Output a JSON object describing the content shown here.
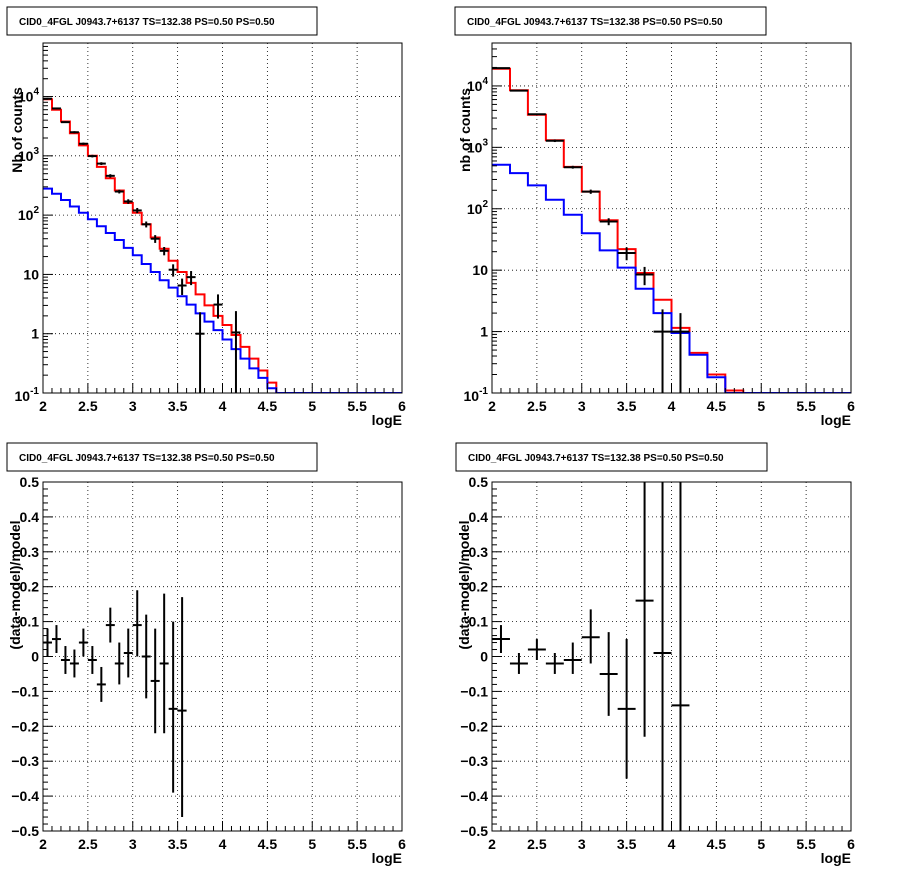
{
  "chart_data": [
    {
      "panel": "top-left",
      "type": "line",
      "title": "CID0_4FGL J0943.7+6137 TS=132.38 PS=0.50 PS=0.50",
      "xlabel": "logE",
      "ylabel": "Nb of counts",
      "xlim": [
        2,
        6
      ],
      "ylim": [
        0.1,
        80000
      ],
      "yscale": "log",
      "grid": true,
      "x_ticks": [
        "2",
        "2.5",
        "3",
        "3.5",
        "4",
        "4.5",
        "5",
        "5.5",
        "6"
      ],
      "y_ticks": [
        {
          "value": 0.1,
          "label": "10^-1"
        },
        {
          "value": 1,
          "label": "1"
        },
        {
          "value": 10,
          "label": "10"
        },
        {
          "value": 100,
          "label": "10^2"
        },
        {
          "value": 1000,
          "label": "10^3"
        },
        {
          "value": 10000,
          "label": "10^4"
        }
      ],
      "series": [
        {
          "color": "#ff0000",
          "kind": "step",
          "bin_edges": [
            2.0,
            2.1,
            2.2,
            2.3,
            2.4,
            2.5,
            2.6,
            2.7,
            2.8,
            2.9,
            3.0,
            3.1,
            3.2,
            3.3,
            3.4,
            3.5,
            3.6,
            3.7,
            3.8,
            3.9,
            4.0,
            4.1,
            4.2,
            4.3,
            4.4,
            4.5,
            4.6,
            4.7,
            4.8,
            4.9,
            5.0,
            5.1,
            5.2,
            5.3,
            5.4,
            5.5,
            5.6,
            5.7,
            5.8,
            5.9,
            6.0
          ],
          "values": [
            9000,
            6000,
            3800,
            2400,
            1500,
            1000,
            650,
            420,
            260,
            160,
            110,
            70,
            42,
            27,
            17,
            11,
            7.2,
            4.6,
            3.0,
            2.0,
            1.4,
            0.95,
            0.6,
            0.38,
            0.24,
            0.15,
            0.1,
            0.1,
            0.1,
            0.1,
            0.1,
            0.1,
            0.1,
            0.1,
            0.1,
            0.1,
            0.1,
            0.1,
            0.1,
            0.1
          ]
        },
        {
          "color": "#0000ff",
          "kind": "step",
          "bin_edges": [
            2.0,
            2.1,
            2.2,
            2.3,
            2.4,
            2.5,
            2.6,
            2.7,
            2.8,
            2.9,
            3.0,
            3.1,
            3.2,
            3.3,
            3.4,
            3.5,
            3.6,
            3.7,
            3.8,
            3.9,
            4.0,
            4.1,
            4.2,
            4.3,
            4.4,
            4.5,
            4.6,
            4.7,
            4.8,
            4.9,
            5.0,
            5.1,
            5.2,
            5.3,
            5.4,
            5.5,
            5.6,
            5.7,
            5.8,
            5.9,
            6.0
          ],
          "values": [
            280,
            230,
            180,
            140,
            110,
            85,
            65,
            50,
            38,
            28,
            21,
            15,
            11,
            8,
            6,
            4.3,
            3.1,
            2.2,
            1.6,
            1.15,
            0.8,
            0.55,
            0.38,
            0.26,
            0.18,
            0.12,
            0.1,
            0.1,
            0.1,
            0.1,
            0.1,
            0.1,
            0.1,
            0.1,
            0.1,
            0.1,
            0.1,
            0.1,
            0.1,
            0.1
          ]
        },
        {
          "color": "#000000",
          "kind": "points",
          "x": [
            2.05,
            2.15,
            2.25,
            2.35,
            2.45,
            2.55,
            2.65,
            2.75,
            2.85,
            2.95,
            3.05,
            3.15,
            3.25,
            3.35,
            3.45,
            3.55,
            3.65,
            3.75,
            3.95,
            4.15
          ],
          "y": [
            9200,
            6300,
            3700,
            2500,
            1600,
            990,
            740,
            460,
            250,
            170,
            120,
            70,
            40,
            25,
            12,
            6.5,
            9.0,
            1.0,
            3.1,
            1.05
          ],
          "ylow": [
            8900,
            6100,
            3580,
            2400,
            1530,
            940,
            700,
            430,
            232,
            155,
            108,
            62,
            34,
            21,
            9.2,
            4.5,
            6.6,
            0.1,
            1.8,
            0.1
          ],
          "yhigh": [
            9500,
            6500,
            3820,
            2600,
            1670,
            1040,
            780,
            490,
            268,
            185,
            132,
            78,
            46,
            29,
            14.8,
            8.5,
            11.4,
            2.3,
            4.6,
            2.4
          ],
          "xerr": 0.05
        }
      ]
    },
    {
      "panel": "top-right",
      "type": "line",
      "title": "CID0_4FGL J0943.7+6137 TS=132.38 PS=0.50 PS=0.50",
      "xlabel": "logE",
      "ylabel": "nb of counts",
      "xlim": [
        2,
        6
      ],
      "ylim": [
        0.1,
        50000
      ],
      "yscale": "log",
      "grid": true,
      "x_ticks": [
        "2",
        "2.5",
        "3",
        "3.5",
        "4",
        "4.5",
        "5",
        "5.5",
        "6"
      ],
      "y_ticks": [
        {
          "value": 0.1,
          "label": "10^-1"
        },
        {
          "value": 1,
          "label": "1"
        },
        {
          "value": 10,
          "label": "10"
        },
        {
          "value": 100,
          "label": "10^2"
        },
        {
          "value": 1000,
          "label": "10^3"
        },
        {
          "value": 10000,
          "label": "10^4"
        }
      ],
      "series": [
        {
          "color": "#ff0000",
          "kind": "step",
          "bin_edges": [
            2.0,
            2.2,
            2.4,
            2.6,
            2.8,
            3.0,
            3.2,
            3.4,
            3.6,
            3.8,
            4.0,
            4.2,
            4.4,
            4.6,
            4.8,
            5.0,
            5.2,
            5.4,
            5.6,
            5.8,
            6.0
          ],
          "values": [
            19000,
            8500,
            3400,
            1300,
            480,
            190,
            65,
            22,
            9,
            3.3,
            1.15,
            0.45,
            0.2,
            0.11,
            0.1,
            0.1,
            0.1,
            0.1,
            0.1,
            0.1
          ]
        },
        {
          "color": "#0000ff",
          "kind": "step",
          "bin_edges": [
            2.0,
            2.2,
            2.4,
            2.6,
            2.8,
            3.0,
            3.2,
            3.4,
            3.6,
            3.8,
            4.0,
            4.2,
            4.4,
            4.6,
            4.8,
            5.0,
            5.2,
            5.4,
            5.6,
            5.8,
            6.0
          ],
          "values": [
            520,
            380,
            240,
            140,
            80,
            40,
            21,
            11,
            5,
            2,
            0.95,
            0.42,
            0.18,
            0.1,
            0.1,
            0.1,
            0.1,
            0.1,
            0.1,
            0.1
          ]
        },
        {
          "color": "#000000",
          "kind": "points",
          "x": [
            2.1,
            2.3,
            2.5,
            2.7,
            2.9,
            3.1,
            3.3,
            3.5,
            3.7,
            3.9,
            4.1
          ],
          "y": [
            19500,
            8400,
            3450,
            1280,
            475,
            190,
            62,
            19,
            8.5,
            1.0,
            1.0
          ],
          "ylow": [
            19200,
            8250,
            3350,
            1220,
            450,
            175,
            54,
            14.5,
            5.7,
            0.1,
            0.1
          ],
          "yhigh": [
            19800,
            8550,
            3550,
            1340,
            500,
            205,
            70,
            23.5,
            11.3,
            2.3,
            2.0
          ],
          "xerr": 0.1
        }
      ]
    },
    {
      "panel": "bottom-left",
      "type": "scatter",
      "title": "CID0_4FGL J0943.7+6137 TS=132.38 PS=0.50 PS=0.50",
      "xlabel": "logE",
      "ylabel": "(data-model)/model",
      "xlim": [
        2,
        6
      ],
      "ylim": [
        -0.5,
        0.5
      ],
      "yscale": "linear",
      "grid": true,
      "x_ticks": [
        "2",
        "2.5",
        "3",
        "3.5",
        "4",
        "4.5",
        "5",
        "5.5",
        "6"
      ],
      "y_ticks": [
        {
          "value": 0.5,
          "label": "0.5"
        },
        {
          "value": 0.4,
          "label": "0.4"
        },
        {
          "value": 0.3,
          "label": "0.3"
        },
        {
          "value": 0.2,
          "label": "0.2"
        },
        {
          "value": 0.1,
          "label": "0.1"
        },
        {
          "value": 0,
          "label": "0"
        },
        {
          "value": -0.1,
          "label": "−0.1"
        },
        {
          "value": -0.2,
          "label": "−0.2"
        },
        {
          "value": -0.3,
          "label": "−0.3"
        },
        {
          "value": -0.4,
          "label": "−0.4"
        },
        {
          "value": -0.5,
          "label": "−0.5"
        }
      ],
      "series": [
        {
          "color": "#000000",
          "kind": "points",
          "x": [
            2.05,
            2.15,
            2.25,
            2.35,
            2.45,
            2.55,
            2.65,
            2.75,
            2.85,
            2.95,
            3.05,
            3.15,
            3.25,
            3.35,
            3.45,
            3.55
          ],
          "y": [
            0.04,
            0.05,
            -0.01,
            -0.02,
            0.04,
            -0.01,
            -0.08,
            0.09,
            -0.02,
            0.01,
            0.09,
            0.0,
            -0.07,
            -0.02,
            -0.15,
            -0.155
          ],
          "ylow": [
            0.0,
            0.01,
            -0.05,
            -0.06,
            0.0,
            -0.05,
            -0.13,
            0.04,
            -0.08,
            -0.06,
            0.0,
            -0.12,
            -0.22,
            -0.22,
            -0.39,
            -0.46
          ],
          "yhigh": [
            0.08,
            0.09,
            0.03,
            0.02,
            0.08,
            0.03,
            -0.03,
            0.14,
            0.04,
            0.08,
            0.19,
            0.12,
            0.08,
            0.18,
            0.1,
            0.17
          ],
          "xerr": 0.05
        }
      ]
    },
    {
      "panel": "bottom-right",
      "type": "scatter",
      "title": "CID0_4FGL J0943.7+6137 TS=132.38 PS=0.50 PS=0.50",
      "xlabel": "logE",
      "ylabel": "(data-model)/model",
      "xlim": [
        2,
        6
      ],
      "ylim": [
        -0.5,
        0.5
      ],
      "yscale": "linear",
      "grid": true,
      "x_ticks": [
        "2",
        "2.5",
        "3",
        "3.5",
        "4",
        "4.5",
        "5",
        "5.5",
        "6"
      ],
      "y_ticks": [
        {
          "value": 0.5,
          "label": "0.5"
        },
        {
          "value": 0.4,
          "label": "0.4"
        },
        {
          "value": 0.3,
          "label": "0.3"
        },
        {
          "value": 0.2,
          "label": "0.2"
        },
        {
          "value": 0.1,
          "label": "0.1"
        },
        {
          "value": 0,
          "label": "0"
        },
        {
          "value": -0.1,
          "label": "−0.1"
        },
        {
          "value": -0.2,
          "label": "−0.2"
        },
        {
          "value": -0.3,
          "label": "−0.3"
        },
        {
          "value": -0.4,
          "label": "−0.4"
        },
        {
          "value": -0.5,
          "label": "−0.5"
        }
      ],
      "series": [
        {
          "color": "#000000",
          "kind": "points",
          "x": [
            2.1,
            2.3,
            2.5,
            2.7,
            2.9,
            3.1,
            3.3,
            3.5,
            3.7,
            3.9,
            4.1
          ],
          "y": [
            0.05,
            -0.02,
            0.02,
            -0.02,
            -0.01,
            0.055,
            -0.05,
            -0.15,
            0.16,
            0.01,
            -0.14
          ],
          "ylow": [
            0.01,
            -0.05,
            -0.01,
            -0.05,
            -0.05,
            -0.02,
            -0.17,
            -0.35,
            -0.23,
            -0.5,
            -0.5
          ],
          "yhigh": [
            0.09,
            0.01,
            0.05,
            0.01,
            0.04,
            0.135,
            0.07,
            0.05,
            0.5,
            0.5,
            0.5
          ],
          "xerr": 0.1
        }
      ]
    }
  ]
}
